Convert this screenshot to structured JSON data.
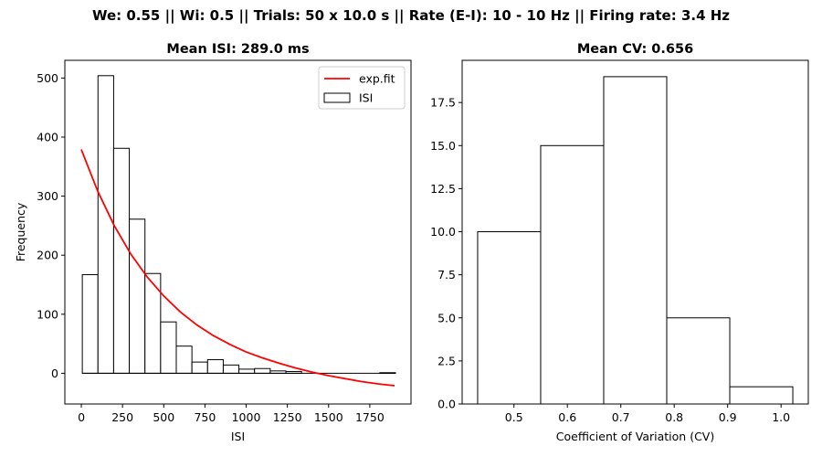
{
  "figure": {
    "suptitle": "We: 0.55 || Wi: 0.5 || Trials: 50 x 10.0 s || Rate (E-I): 10 - 10 Hz || Firing rate: 3.4 Hz"
  },
  "chart_data": [
    {
      "type": "bar",
      "title": "Mean ISI: 289.0 ms",
      "xlabel": "ISI",
      "ylabel": "Frequency",
      "xlim": [
        -100,
        2000
      ],
      "ylim": [
        -52,
        530
      ],
      "xticks": [
        0,
        250,
        500,
        750,
        1000,
        1250,
        1500,
        1750
      ],
      "xtick_labels": [
        "0",
        "250",
        "500",
        "750",
        "1000",
        "1250",
        "1500",
        "1750"
      ],
      "yticks": [
        0,
        100,
        200,
        300,
        400,
        500
      ],
      "ytick_labels": [
        "0",
        "100",
        "200",
        "300",
        "400",
        "500"
      ],
      "bin_edges": [
        6,
        101,
        196,
        291,
        386,
        481,
        576,
        671,
        766,
        861,
        956,
        1051,
        1146,
        1241,
        1336,
        1431,
        1526,
        1621,
        1716,
        1811,
        1906
      ],
      "values": [
        167,
        504,
        381,
        261,
        169,
        87,
        46,
        19,
        23,
        14,
        7,
        8,
        4,
        3,
        0,
        0,
        0,
        0,
        0,
        1
      ],
      "bar_face": "#ffffff",
      "bar_edge": "#000000",
      "fit": {
        "name": "exp.fit",
        "color": "#ff0000",
        "x": [
          0,
          100,
          200,
          300,
          400,
          500,
          600,
          700,
          800,
          900,
          1000,
          1100,
          1200,
          1300,
          1400,
          1500,
          1600,
          1700,
          1800,
          1900
        ],
        "y": [
          379,
          308,
          250,
          202,
          163,
          131,
          104,
          82,
          64,
          49,
          36,
          26,
          17,
          9,
          2,
          -4,
          -9,
          -14,
          -18,
          -21
        ]
      },
      "legend": {
        "position": "upper right",
        "entries": [
          {
            "label": "exp.fit",
            "kind": "line",
            "color": "#ff0000"
          },
          {
            "label": "ISI",
            "kind": "patch",
            "color": "#ffffff"
          }
        ]
      }
    },
    {
      "type": "bar",
      "title": "Mean CV: 0.656",
      "xlabel": "Coefficient of Variation (CV)",
      "ylabel": "",
      "xlim": [
        0.403,
        1.051
      ],
      "ylim": [
        0,
        19.95
      ],
      "xticks": [
        0.5,
        0.6,
        0.7,
        0.8,
        0.9,
        1.0
      ],
      "xtick_labels": [
        "0.5",
        "0.6",
        "0.7",
        "0.8",
        "0.9",
        "1.0"
      ],
      "yticks": [
        0,
        2.5,
        5,
        7.5,
        10,
        12.5,
        15,
        17.5
      ],
      "ytick_labels": [
        "0.0",
        "2.5",
        "5.0",
        "7.5",
        "10.0",
        "12.5",
        "15.0",
        "17.5"
      ],
      "bin_edges": [
        0.432,
        0.55,
        0.668,
        0.786,
        0.904,
        1.022
      ],
      "values": [
        10,
        15,
        19,
        5,
        1
      ],
      "bar_face": "#ffffff",
      "bar_edge": "#000000"
    }
  ]
}
